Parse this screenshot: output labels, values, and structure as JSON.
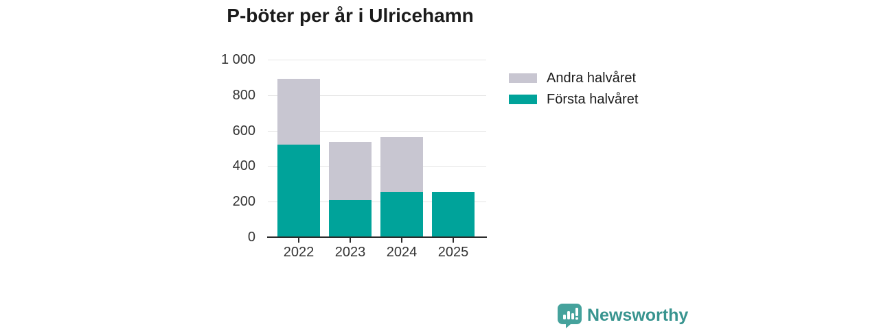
{
  "chart_data": {
    "type": "bar",
    "stacked": true,
    "title": "P-böter per år i Ulricehamn",
    "categories": [
      "2022",
      "2023",
      "2024",
      "2025"
    ],
    "series": [
      {
        "name": "Första halvåret",
        "color": "#00a39a",
        "values": [
          520,
          210,
          255,
          255
        ]
      },
      {
        "name": "Andra halvåret",
        "color": "#c8c6d1",
        "values": [
          370,
          325,
          310,
          0
        ]
      }
    ],
    "xlabel": "",
    "ylabel": "",
    "ylim": [
      0,
      1000
    ],
    "yticks": [
      0,
      200,
      400,
      600,
      800,
      1000
    ],
    "ytick_labels": [
      "0",
      "200",
      "400",
      "600",
      "800",
      "1 000"
    ],
    "grid": true,
    "legend_position": "right",
    "legend_entries": [
      {
        "label": "Andra halvåret",
        "color": "#c8c6d1"
      },
      {
        "label": "Första halvåret",
        "color": "#00a39a"
      }
    ]
  },
  "footer": {
    "brand": "Newsworthy",
    "icon_color": "#45a29c",
    "text_color": "#38948f"
  },
  "colors": {
    "first_half": "#00a39a",
    "second_half": "#c8c6d1",
    "gridline": "#e5e5e5",
    "axis": "#2b2b2b",
    "title_text": "#1b1b1b",
    "tick_text": "#333333"
  }
}
